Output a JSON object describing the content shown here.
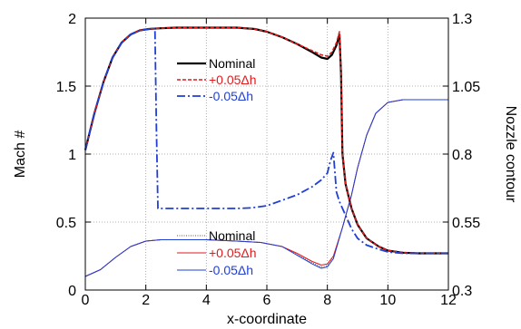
{
  "chart_data": {
    "type": "line",
    "xlabel": "x-coordinate",
    "ylabel_left": "Mach #",
    "ylabel_right": "Nozzle contour",
    "xlim": [
      0,
      12
    ],
    "ylim_left": [
      0,
      2
    ],
    "ylim_right": [
      0.3,
      1.3
    ],
    "x_ticks": [
      0,
      2,
      4,
      6,
      8,
      10,
      12
    ],
    "y_ticks_left": [
      0,
      0.5,
      1,
      1.5,
      2
    ],
    "y_ticks_right": [
      0.3,
      0.55,
      0.8,
      1.05,
      1.3
    ],
    "grid": "dotted",
    "legend_mach": {
      "placement": "top-center",
      "entries": [
        "Nominal",
        "+0.05Δh",
        "-0.05Δh"
      ]
    },
    "legend_contour": {
      "placement": "bottom-center",
      "entries": [
        "Nominal",
        "+0.05Δh",
        "-0.05Δh"
      ]
    },
    "mach_series": [
      {
        "name": "Nominal",
        "axis": "left",
        "color": "#000000",
        "style": "solid",
        "x": [
          0,
          0.3,
          0.6,
          0.9,
          1.2,
          1.5,
          1.8,
          2.1,
          2.4,
          3,
          4,
          5,
          5.6,
          6,
          6.5,
          7,
          7.5,
          7.8,
          8,
          8.15,
          8.3,
          8.4,
          8.45,
          8.5,
          8.6,
          8.8,
          9,
          9.3,
          9.7,
          10,
          10.5,
          11,
          12
        ],
        "y": [
          1.03,
          1.3,
          1.53,
          1.71,
          1.82,
          1.88,
          1.91,
          1.92,
          1.925,
          1.93,
          1.93,
          1.93,
          1.92,
          1.9,
          1.86,
          1.81,
          1.75,
          1.71,
          1.7,
          1.73,
          1.8,
          1.88,
          1.6,
          1.0,
          0.78,
          0.6,
          0.48,
          0.38,
          0.32,
          0.29,
          0.275,
          0.27,
          0.27
        ]
      },
      {
        "name": "+0.05Δh",
        "axis": "left",
        "color": "#e31a1c",
        "style": "dashed",
        "x": [
          0,
          0.3,
          0.6,
          0.9,
          1.2,
          1.5,
          1.8,
          2.1,
          2.4,
          3,
          4,
          5,
          5.6,
          6,
          6.5,
          7,
          7.5,
          7.8,
          8,
          8.15,
          8.3,
          8.4,
          8.45,
          8.5,
          8.6,
          8.8,
          9,
          9.3,
          9.7,
          10,
          10.5,
          11,
          12
        ],
        "y": [
          1.03,
          1.3,
          1.53,
          1.71,
          1.82,
          1.88,
          1.91,
          1.92,
          1.925,
          1.93,
          1.93,
          1.93,
          1.92,
          1.9,
          1.86,
          1.81,
          1.76,
          1.73,
          1.72,
          1.75,
          1.82,
          1.9,
          1.62,
          1.0,
          0.78,
          0.6,
          0.48,
          0.38,
          0.32,
          0.29,
          0.275,
          0.27,
          0.27
        ]
      },
      {
        "name": "-0.05Δh",
        "axis": "left",
        "color": "#1f3fd6",
        "style": "dashdot",
        "x": [
          0,
          0.3,
          0.6,
          0.9,
          1.2,
          1.5,
          1.8,
          2.1,
          2.3,
          2.35,
          2.4,
          3,
          4,
          5,
          5.5,
          6,
          6.5,
          7,
          7.5,
          7.8,
          8.0,
          8.1,
          8.2,
          8.3,
          8.4,
          8.6,
          8.8,
          9,
          9.3,
          9.7,
          10,
          10.5,
          11,
          12
        ],
        "y": [
          1.03,
          1.3,
          1.53,
          1.71,
          1.82,
          1.88,
          1.91,
          1.92,
          1.925,
          1.2,
          0.6,
          0.6,
          0.6,
          0.6,
          0.605,
          0.62,
          0.66,
          0.7,
          0.76,
          0.81,
          0.86,
          0.95,
          1.01,
          0.72,
          0.65,
          0.55,
          0.45,
          0.38,
          0.33,
          0.3,
          0.28,
          0.27,
          0.27,
          0.27
        ]
      }
    ],
    "contour_series": [
      {
        "name": "Nominal",
        "axis": "right",
        "color": "#555555",
        "style": "dotted",
        "x": [
          0,
          0.5,
          1,
          1.5,
          2,
          2.5,
          3,
          4,
          5,
          5.8,
          6.5,
          7,
          7.5,
          7.8,
          8,
          8.2,
          8.5,
          8.8,
          9,
          9.3,
          9.6,
          10,
          10.5,
          11,
          12
        ],
        "y": [
          0.35,
          0.375,
          0.42,
          0.46,
          0.48,
          0.485,
          0.485,
          0.485,
          0.48,
          0.475,
          0.46,
          0.43,
          0.4,
          0.385,
          0.39,
          0.42,
          0.53,
          0.65,
          0.75,
          0.87,
          0.95,
          0.99,
          1.0,
          1.0,
          1.0
        ]
      },
      {
        "name": "+0.05Δh",
        "axis": "right",
        "color": "#e31a1c",
        "style": "solid",
        "x": [
          0,
          0.5,
          1,
          1.5,
          2,
          2.5,
          3,
          4,
          5,
          5.8,
          6.5,
          7,
          7.5,
          7.8,
          8,
          8.2,
          8.5,
          8.8,
          9,
          9.3,
          9.6,
          10,
          10.5,
          11,
          12
        ],
        "y": [
          0.35,
          0.375,
          0.42,
          0.46,
          0.48,
          0.485,
          0.485,
          0.485,
          0.48,
          0.475,
          0.46,
          0.435,
          0.405,
          0.392,
          0.396,
          0.425,
          0.53,
          0.65,
          0.75,
          0.87,
          0.95,
          0.99,
          1.0,
          1.0,
          1.0
        ]
      },
      {
        "name": "-0.05Δh",
        "axis": "right",
        "color": "#1f3fd6",
        "style": "solid",
        "x": [
          0,
          0.5,
          1,
          1.5,
          2,
          2.5,
          3,
          4,
          5,
          5.8,
          6.5,
          7,
          7.5,
          7.8,
          8,
          8.2,
          8.5,
          8.8,
          9,
          9.3,
          9.6,
          10,
          10.5,
          11,
          12
        ],
        "y": [
          0.35,
          0.375,
          0.42,
          0.46,
          0.48,
          0.485,
          0.485,
          0.485,
          0.48,
          0.475,
          0.46,
          0.428,
          0.396,
          0.38,
          0.385,
          0.415,
          0.53,
          0.65,
          0.75,
          0.87,
          0.95,
          0.99,
          1.0,
          1.0,
          1.0
        ]
      }
    ]
  }
}
